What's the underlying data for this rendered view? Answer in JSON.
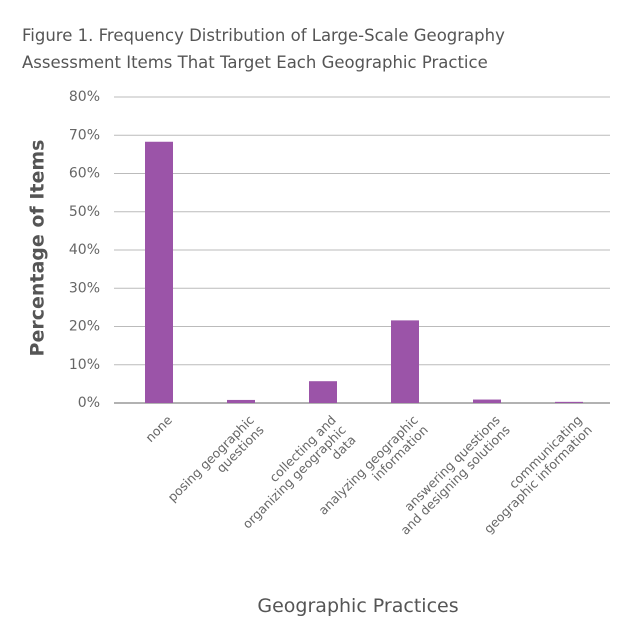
{
  "chart_data": {
    "type": "bar",
    "title": "Figure 1. Frequency Distribution of Large-Scale Geography Assessment Items That Target Each Geographic Practice",
    "xlabel": "Geographic Practices",
    "ylabel": "Percentage of Items",
    "categories": [
      "none",
      "posing geographic questions",
      "collecting and organizing geographic data",
      "analyzing geographic information",
      "answering questions and designing solutions",
      "communicating geographic information"
    ],
    "values": [
      68.3,
      0.8,
      5.7,
      21.6,
      0.9,
      0.3
    ],
    "color": "#9b54a8",
    "ylim": [
      0,
      80
    ],
    "yticks": [
      {
        "value": 0,
        "label": "0%"
      },
      {
        "value": 10,
        "label": "10%"
      },
      {
        "value": 20,
        "label": "20%"
      },
      {
        "value": 30,
        "label": "30%"
      },
      {
        "value": 40,
        "label": "40%"
      },
      {
        "value": 50,
        "label": "50%"
      },
      {
        "value": 60,
        "label": "60%"
      },
      {
        "value": 70,
        "label": "70%"
      },
      {
        "value": 80,
        "label": "80%"
      }
    ],
    "grid": true
  }
}
